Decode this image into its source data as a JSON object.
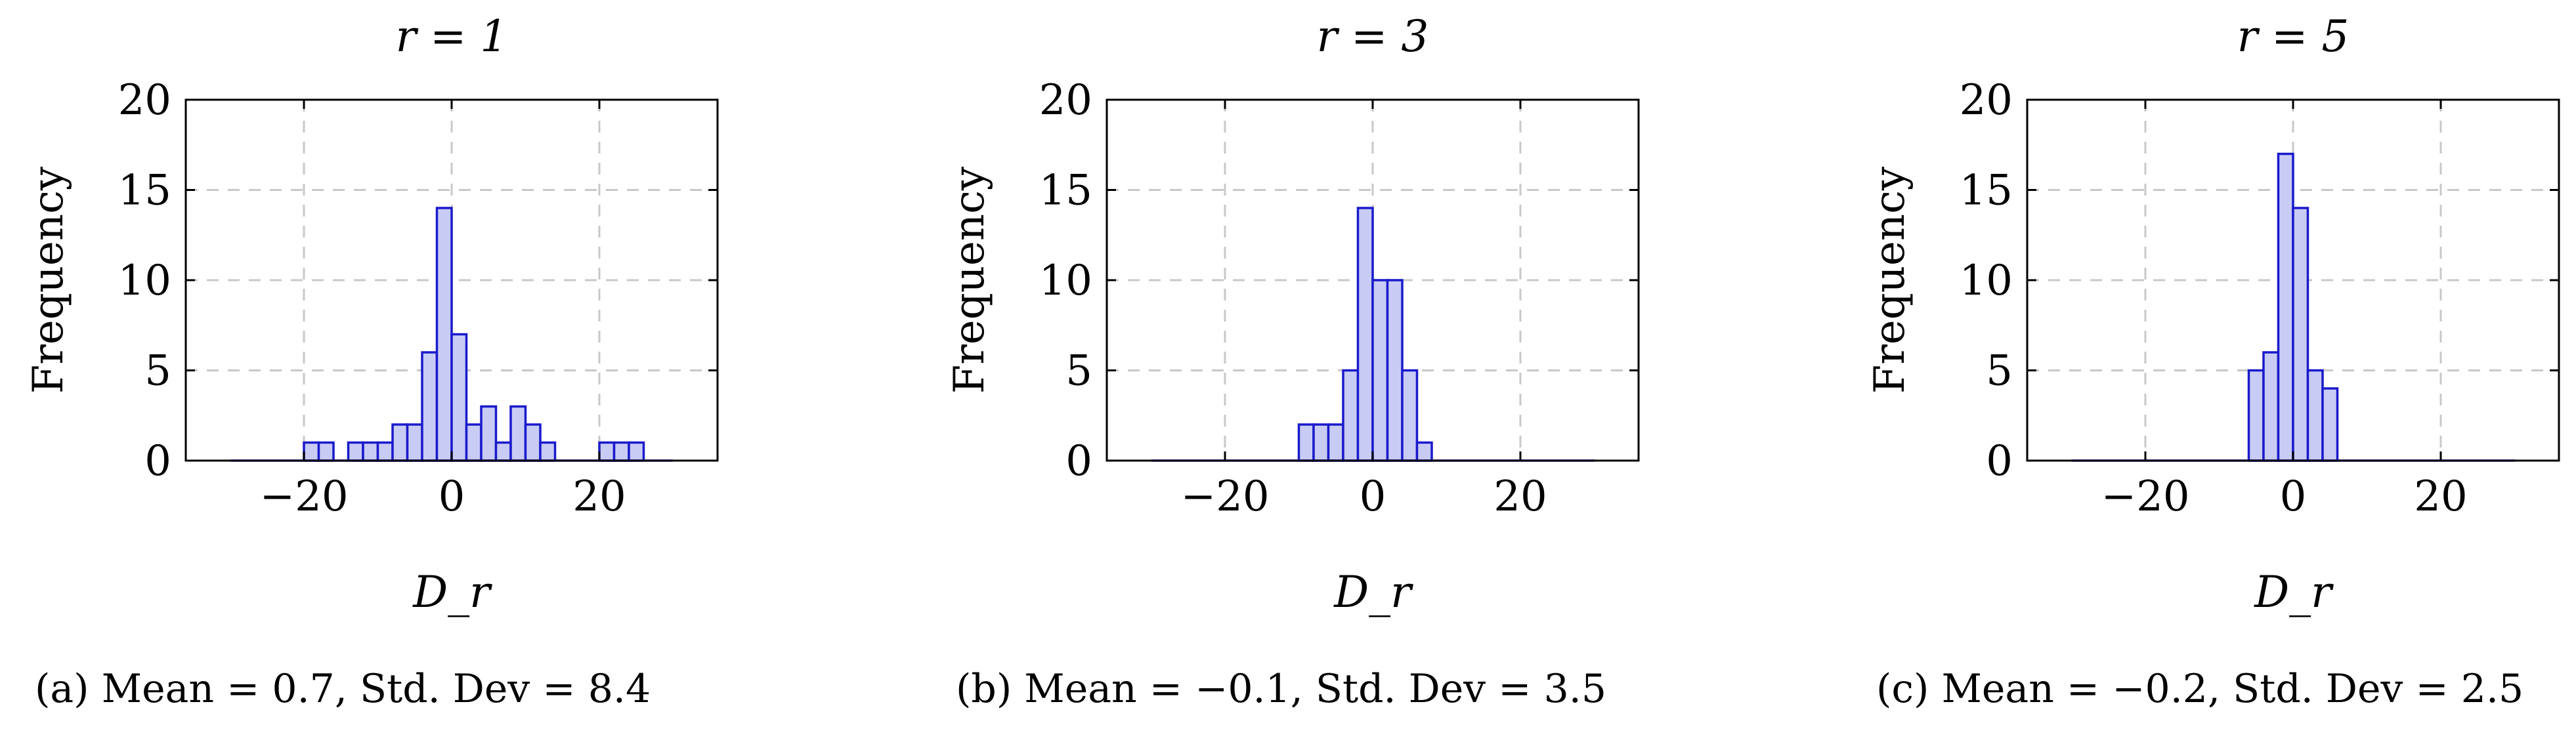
{
  "chart_data": [
    {
      "type": "bar",
      "title": "r = 1",
      "xlabel": "D_r",
      "ylabel": "Frequency",
      "xlim": [
        -36,
        36
      ],
      "ylim": [
        0,
        20
      ],
      "xticks": [
        "−20",
        "0",
        "20"
      ],
      "yticks": [
        "0",
        "5",
        "10",
        "15",
        "20"
      ],
      "grid": true,
      "bin_width": 2,
      "bins": [
        [
          -20,
          1
        ],
        [
          -18,
          1
        ],
        [
          -14,
          1
        ],
        [
          -12,
          1
        ],
        [
          -10,
          1
        ],
        [
          -8,
          2
        ],
        [
          -6,
          2
        ],
        [
          -4,
          6
        ],
        [
          -2,
          14
        ],
        [
          0,
          7
        ],
        [
          2,
          2
        ],
        [
          4,
          3
        ],
        [
          6,
          1
        ],
        [
          8,
          3
        ],
        [
          10,
          2
        ],
        [
          12,
          1
        ],
        [
          20,
          1
        ],
        [
          22,
          1
        ],
        [
          24,
          1
        ]
      ],
      "baseline": [
        -30,
        30
      ],
      "caption": "(a) Mean = 0.7, Std. Dev = 8.4"
    },
    {
      "type": "bar",
      "title": "r = 3",
      "xlabel": "D_r",
      "ylabel": "Frequency",
      "xlim": [
        -36,
        36
      ],
      "ylim": [
        0,
        20
      ],
      "xticks": [
        "−20",
        "0",
        "20"
      ],
      "yticks": [
        "0",
        "5",
        "10",
        "15",
        "20"
      ],
      "grid": true,
      "bin_width": 2,
      "bins": [
        [
          -10,
          2
        ],
        [
          -8,
          2
        ],
        [
          -6,
          2
        ],
        [
          -4,
          5
        ],
        [
          -2,
          14
        ],
        [
          0,
          10
        ],
        [
          2,
          10
        ],
        [
          4,
          5
        ],
        [
          6,
          1
        ]
      ],
      "baseline": [
        -30,
        30
      ],
      "caption": "(b) Mean = −0.1, Std. Dev = 3.5"
    },
    {
      "type": "bar",
      "title": "r = 5",
      "xlabel": "D_r",
      "ylabel": "Frequency",
      "xlim": [
        -36,
        36
      ],
      "ylim": [
        0,
        20
      ],
      "xticks": [
        "−20",
        "0",
        "20"
      ],
      "yticks": [
        "0",
        "5",
        "10",
        "15",
        "20"
      ],
      "grid": true,
      "bin_width": 2,
      "bins": [
        [
          -6,
          5
        ],
        [
          -4,
          6
        ],
        [
          -2,
          17
        ],
        [
          0,
          14
        ],
        [
          2,
          5
        ],
        [
          4,
          4
        ]
      ],
      "baseline": [
        -30,
        30
      ],
      "caption": "(c) Mean = −0.2, Std. Dev = 2.5"
    }
  ]
}
